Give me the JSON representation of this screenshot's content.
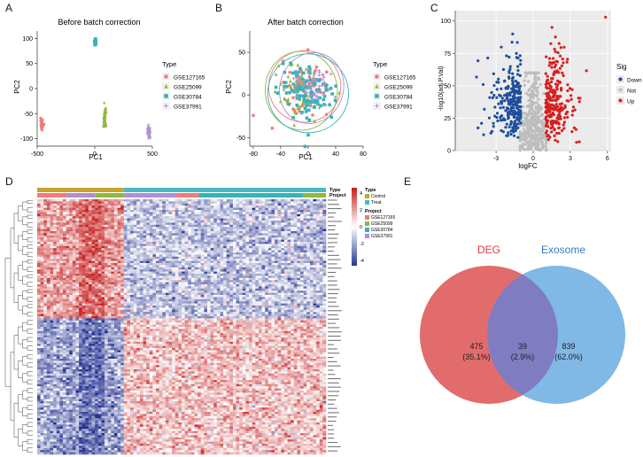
{
  "panel_labels": [
    "A",
    "B",
    "C",
    "D",
    "E"
  ],
  "colors": {
    "gse127165": "#f07c7c",
    "gse25099": "#8dba3f",
    "gse30784": "#35b3b8",
    "gse37991": "#b08fd6",
    "down": "#1f4e9c",
    "not": "#bdbdbd",
    "up": "#d81e1e",
    "control": "#c8a32e",
    "treat": "#4bb8c2",
    "deg_circle": "#e26c6c",
    "exo_circle": "#80b8e6",
    "overlap": "#7f7cc2",
    "deg_title": "#e23b3b",
    "exo_title": "#3a78c4"
  },
  "type_legend": {
    "title": "Type",
    "items": [
      "GSE127165",
      "GSE25099",
      "GSE30784",
      "GSE37991"
    ]
  },
  "panelA": {
    "chart_data": {
      "type": "scatter",
      "title": "Before batch correction",
      "xlabel": "PC1",
      "ylabel": "PC2",
      "xlim": [
        -500,
        500
      ],
      "ylim": [
        -115,
        115
      ],
      "xticks": [
        "-500",
        "0",
        "500"
      ],
      "yticks": [
        "-100",
        "-50",
        "0",
        "50",
        "100"
      ],
      "clusters": [
        {
          "name": "GSE127165",
          "center": [
            -460,
            -73
          ],
          "spread": [
            10,
            8
          ],
          "n": 40
        },
        {
          "name": "GSE25099",
          "center": [
            85,
            -60
          ],
          "spread": [
            12,
            16
          ],
          "n": 70
        },
        {
          "name": "GSE30784",
          "center": [
            5,
            93
          ],
          "spread": [
            8,
            6
          ],
          "n": 50
        },
        {
          "name": "GSE37991",
          "center": [
            470,
            -86
          ],
          "spread": [
            12,
            9
          ],
          "n": 45
        }
      ]
    }
  },
  "panelB": {
    "chart_data": {
      "type": "scatter",
      "title": "After batch correction",
      "xlabel": "PC1",
      "ylabel": "PC2",
      "xlim": [
        -85,
        80
      ],
      "ylim": [
        -60,
        75
      ],
      "xticks": [
        "-80",
        "-40",
        "0",
        "40",
        "80"
      ],
      "yticks": [
        "-50",
        "0",
        "50"
      ],
      "clusters": [
        {
          "name": "GSE127165",
          "center": [
            -5,
            10
          ],
          "spread": [
            25,
            20
          ],
          "n": 60
        },
        {
          "name": "GSE25099",
          "center": [
            -10,
            5
          ],
          "spread": [
            25,
            22
          ],
          "n": 80
        },
        {
          "name": "GSE30784",
          "center": [
            0,
            2
          ],
          "spread": [
            28,
            22
          ],
          "n": 110
        },
        {
          "name": "GSE37991",
          "center": [
            5,
            8
          ],
          "spread": [
            22,
            20
          ],
          "n": 60
        }
      ]
    }
  },
  "panelC": {
    "chart_data": {
      "type": "scatter",
      "xlabel": "logFC",
      "ylabel": "-log10(adj.P.Val)",
      "xlim": [
        -6.3,
        6.3
      ],
      "ylim": [
        0,
        108
      ],
      "xticks": [
        "-3",
        "0",
        "3",
        "6"
      ],
      "yticks": [
        "0",
        "25",
        "50",
        "75",
        "100"
      ],
      "legend_title": "Sig",
      "legend": [
        "Down",
        "Not",
        "Up"
      ],
      "groups": [
        {
          "name": "Down",
          "n": 250
        },
        {
          "name": "Not",
          "n": 400
        },
        {
          "name": "Up",
          "n": 250
        }
      ]
    }
  },
  "panelD": {
    "chart_data": {
      "type": "heatmap",
      "annotation_rows": [
        "Type",
        "Project"
      ],
      "scale": {
        "title": "",
        "ticks": [
          "4",
          "2",
          "0",
          "-2",
          "-4"
        ]
      },
      "type_legend": {
        "title": "Type",
        "items": [
          "Control",
          "Treat"
        ]
      },
      "project_legend": {
        "title": "Project",
        "items": [
          "GSE127165",
          "GSE25099",
          "GSE30784",
          "GSE37991"
        ]
      },
      "n_columns": 90,
      "n_rows": 120,
      "control_fraction": 0.3
    }
  },
  "panelE": {
    "chart_data": {
      "type": "venn",
      "sets": [
        {
          "name": "DEG",
          "only": "475",
          "only_pct": "(35.1%)"
        },
        {
          "name": "Exosome",
          "only": "839",
          "only_pct": "(62.0%)"
        }
      ],
      "overlap": "39",
      "overlap_pct": "(2.9%)"
    }
  }
}
